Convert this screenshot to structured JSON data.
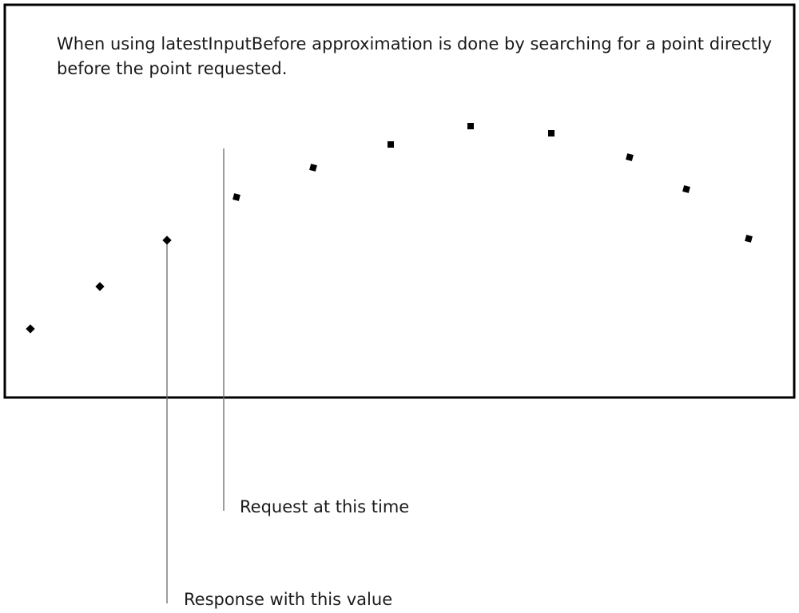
{
  "description_text": "When using latestInputBefore approximation is done by searching for a point directly before the point requested.",
  "request_label": "Request at this time",
  "response_label": "Response with this value",
  "points": [
    {
      "t": 0,
      "value": 0
    },
    {
      "t": 1,
      "value": 53
    },
    {
      "t": 2,
      "value": 111
    },
    {
      "t": 3,
      "value": 165
    },
    {
      "t": 4,
      "value": 202
    },
    {
      "t": 5,
      "value": 231
    },
    {
      "t": 6,
      "value": 254
    },
    {
      "t": 7,
      "value": 245
    },
    {
      "t": 8,
      "value": 215
    },
    {
      "t": 9,
      "value": 175
    },
    {
      "t": 10,
      "value": 113
    }
  ],
  "request_time": 3,
  "response_point_index": 2
}
